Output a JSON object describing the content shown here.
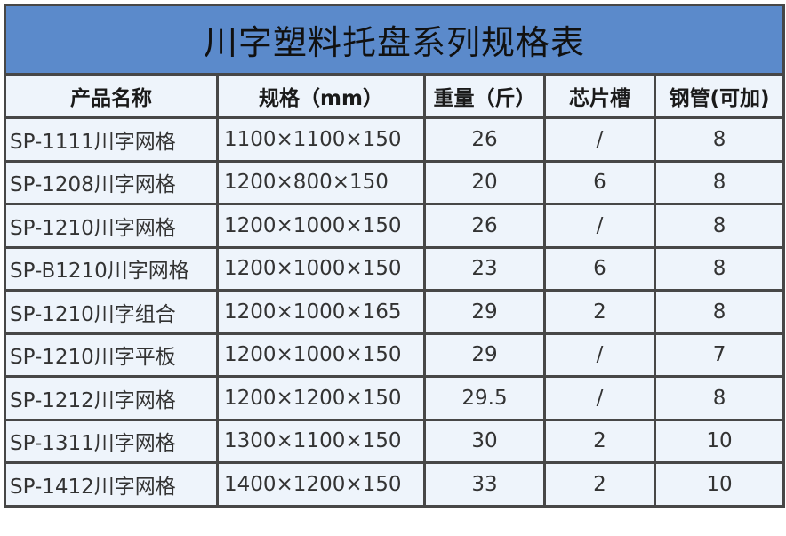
{
  "title": "川字塑料托盘系列规格表",
  "headers": [
    "产品名称",
    "规格（mm）",
    "重量（斤）",
    "芯片槽",
    "钢管(可加)"
  ],
  "rows": [
    [
      "SP-1111川字网格",
      "1100×1100×150",
      "26",
      "/",
      "8"
    ],
    [
      "SP-1208川字网格",
      "1200×800×150",
      "20",
      "6",
      "8"
    ],
    [
      "SP-1210川字网格",
      "1200×1000×150",
      "26",
      "/",
      "8"
    ],
    [
      "SP-B1210川字网格",
      "1200×1000×150",
      "23",
      "6",
      "8"
    ],
    [
      "SP-1210川字组合",
      "1200×1000×165",
      "29",
      "2",
      "8"
    ],
    [
      "SP-1210川字平板",
      "1200×1000×150",
      "29",
      "/",
      "7"
    ],
    [
      "SP-1212川字网格",
      "1200×1200×150",
      "29.5",
      "/",
      "8"
    ],
    [
      "SP-1311川字网格",
      "1300×1100×150",
      "30",
      "2",
      "10"
    ],
    [
      "SP-1412川字网格",
      "1400×1200×150",
      "33",
      "2",
      "10"
    ]
  ],
  "colors": {
    "title_bg": "#5b8acb",
    "cell_bg": "#eef4fb",
    "border": "#474747"
  }
}
